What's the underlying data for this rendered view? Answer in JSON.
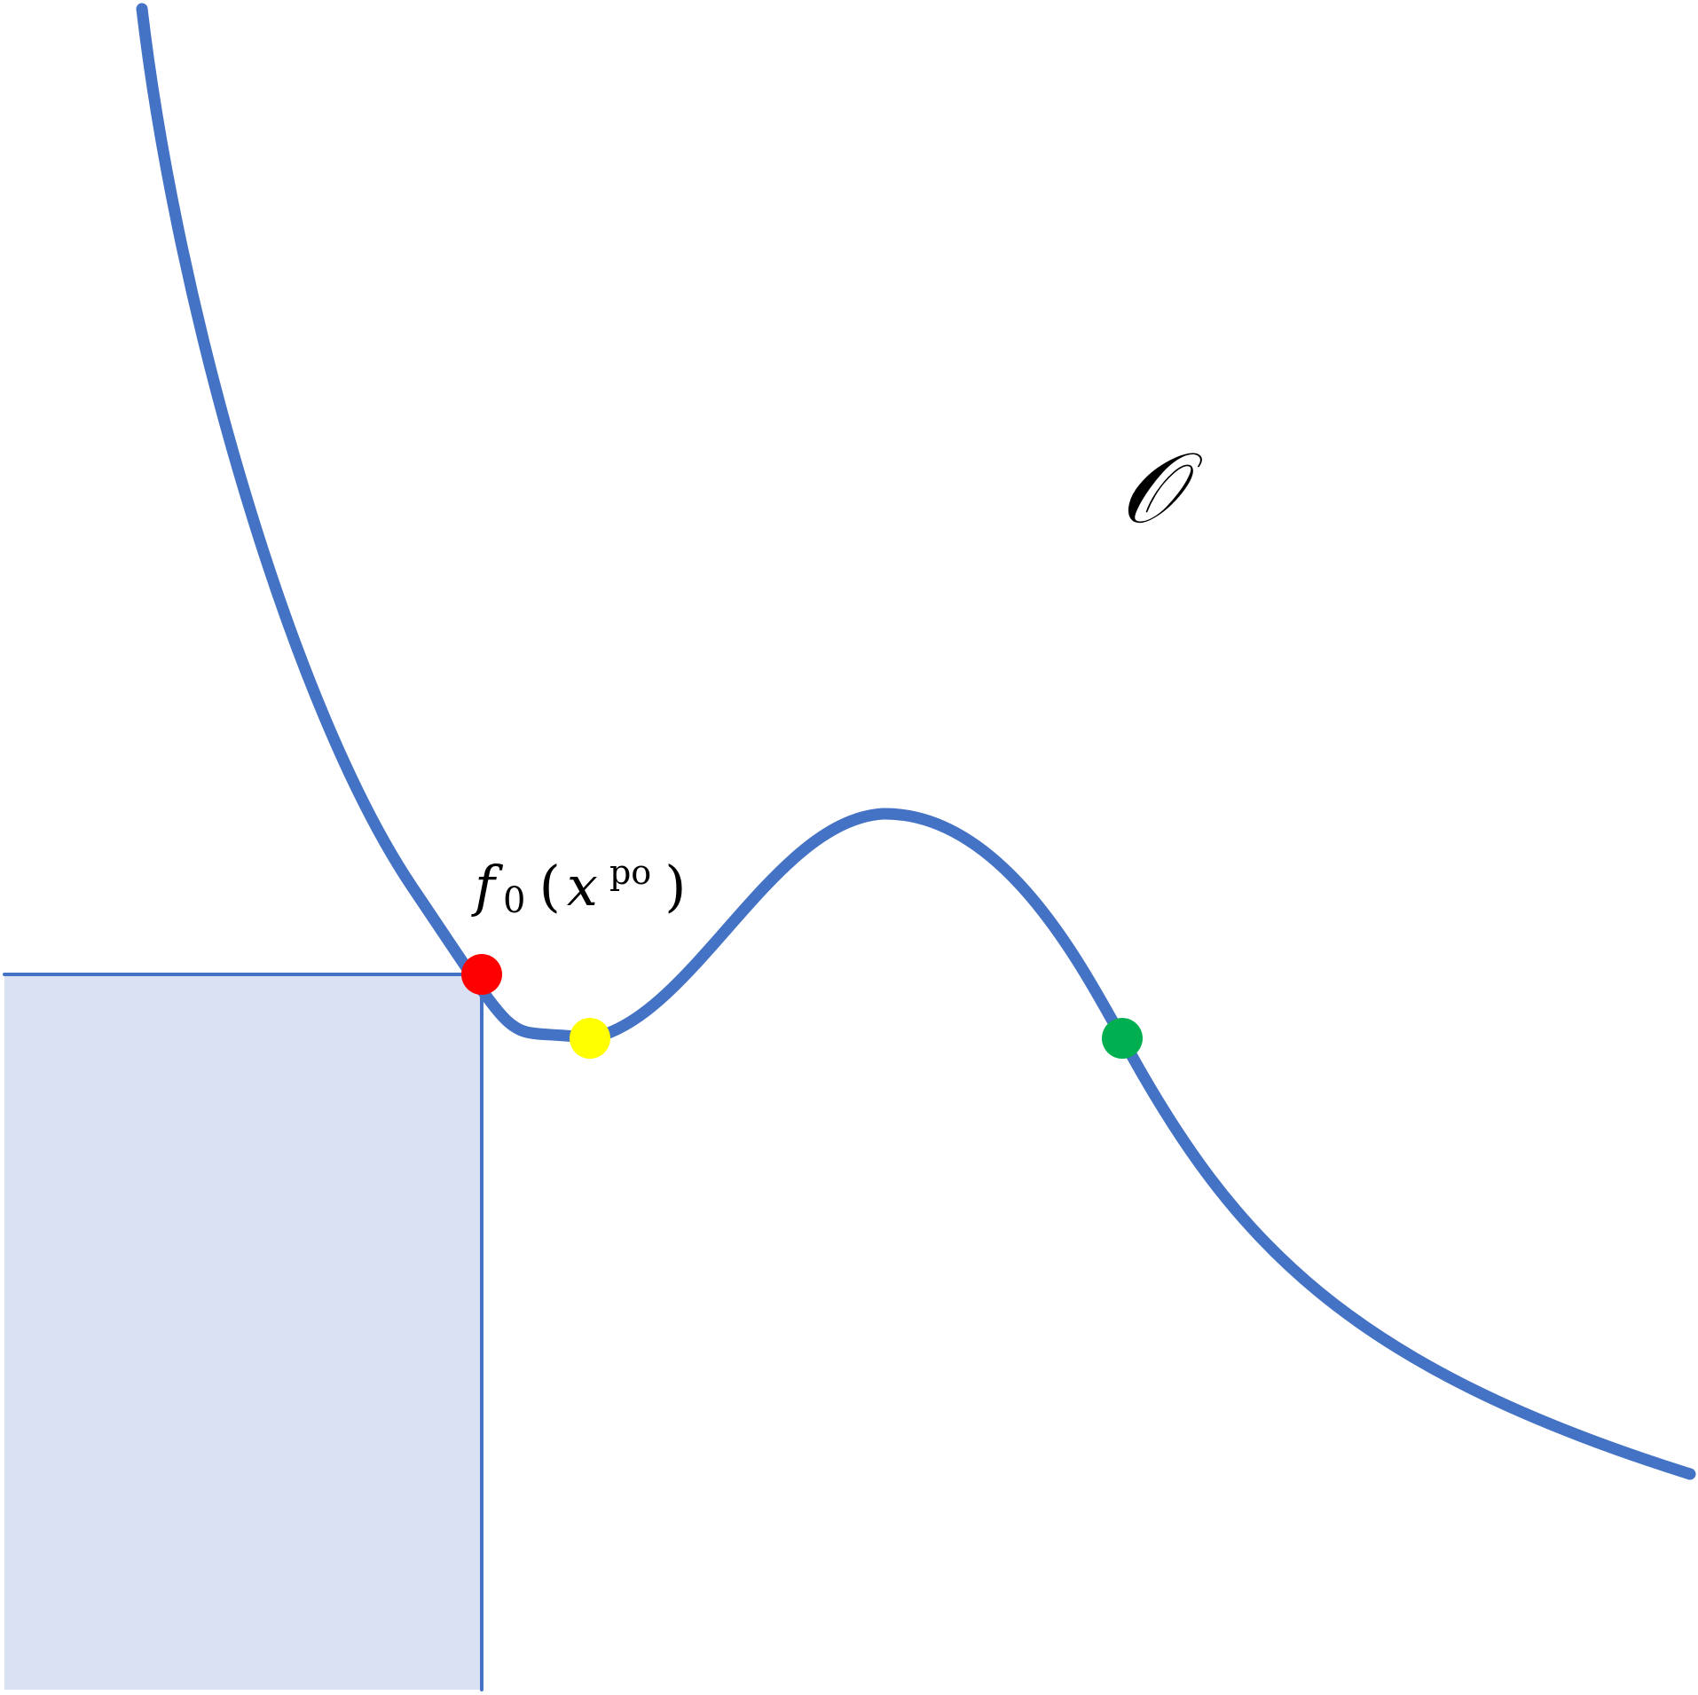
{
  "diagram": {
    "labels": {
      "point_label": {
        "base": "f",
        "subscript": "0",
        "open_paren": "(",
        "variable": "x",
        "superscript": "po",
        "close_paren": ")"
      },
      "region_label": "𝒪"
    },
    "colors": {
      "curve": "#4472C4",
      "dominated_region_fill": "#DAE1F2",
      "dominated_region_edge": "#4472C4",
      "point_red": "#FF0000",
      "point_yellow": "#FFFF00",
      "point_green": "#00B050"
    },
    "points": [
      {
        "name": "red-point",
        "color_key": "point_red"
      },
      {
        "name": "yellow-point",
        "color_key": "point_yellow"
      },
      {
        "name": "green-point",
        "color_key": "point_green"
      }
    ]
  }
}
